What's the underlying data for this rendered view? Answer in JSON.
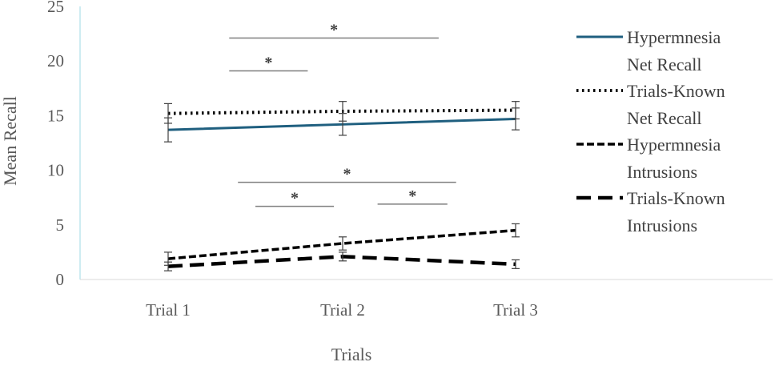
{
  "chart_data": {
    "type": "line",
    "xlabel": "Trials",
    "ylabel": "Mean Recall",
    "categories": [
      "Trial 1",
      "Trial 2",
      "Trial 3"
    ],
    "ylim": [
      0,
      25
    ],
    "yticks": [
      "0",
      "5",
      "10",
      "15",
      "20",
      "25"
    ],
    "grid": false,
    "legend_position": "right",
    "series": [
      {
        "name": "Hypermnesia Net Recall",
        "legend_lines": [
          "Hypermnesia",
          "Net Recall"
        ],
        "style": "solid",
        "color": "#1f5f7f",
        "values": [
          13.7,
          14.2,
          14.7
        ],
        "errors": [
          1.1,
          1.0,
          1.0
        ]
      },
      {
        "name": "Trials-Known Net Recall",
        "legend_lines": [
          "Trials-Known",
          "Net Recall"
        ],
        "style": "dotted",
        "color": "#000000",
        "values": [
          15.2,
          15.4,
          15.5
        ],
        "errors": [
          0.9,
          0.9,
          0.8
        ]
      },
      {
        "name": "Hypermnesia Intrusions",
        "legend_lines": [
          "Hypermnesia",
          "Intrusions"
        ],
        "style": "dashed-short",
        "color": "#000000",
        "values": [
          1.9,
          3.3,
          4.5
        ],
        "errors": [
          0.6,
          0.6,
          0.6
        ]
      },
      {
        "name": "Trials-Known Intrusions",
        "legend_lines": [
          "Trials-Known",
          "Intrusions"
        ],
        "style": "dashed-long",
        "color": "#000000",
        "values": [
          1.2,
          2.1,
          1.4
        ],
        "errors": [
          0.4,
          0.4,
          0.4
        ]
      }
    ],
    "significance_markers": [
      {
        "label": "*",
        "from": 0.35,
        "to": 0.8,
        "y": 19.1
      },
      {
        "label": "*",
        "from": 0.35,
        "to": 1.55,
        "y": 22.1
      },
      {
        "label": "*",
        "from": 0.5,
        "to": 0.95,
        "y": 6.7
      },
      {
        "label": "*",
        "from": 1.2,
        "to": 1.6,
        "y": 6.9
      },
      {
        "label": "*",
        "from": 0.4,
        "to": 1.65,
        "y": 8.9
      }
    ]
  }
}
